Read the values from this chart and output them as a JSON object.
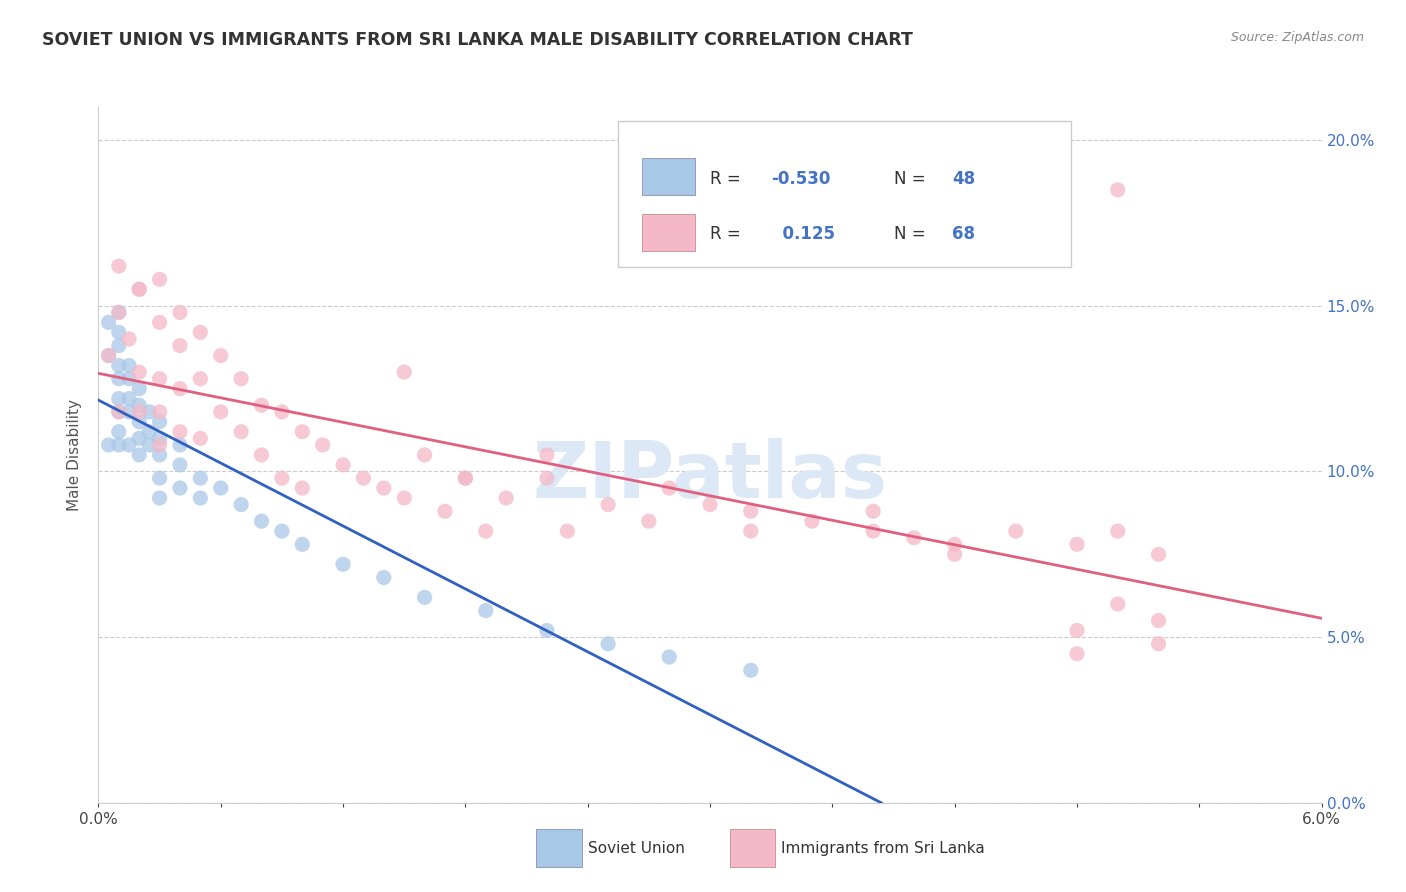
{
  "title": "SOVIET UNION VS IMMIGRANTS FROM SRI LANKA MALE DISABILITY CORRELATION CHART",
  "source": "Source: ZipAtlas.com",
  "ylabel": "Male Disability",
  "x_min": 0.0,
  "x_max": 0.06,
  "y_min": 0.0,
  "y_max": 0.21,
  "right_y_ticks": [
    0.0,
    0.05,
    0.1,
    0.15,
    0.2
  ],
  "right_y_labels": [
    "0.0%",
    "5.0%",
    "10.0%",
    "15.0%",
    "20.0%"
  ],
  "x_ticks": [
    0.0,
    0.006,
    0.012,
    0.018,
    0.024,
    0.03,
    0.036,
    0.042,
    0.048,
    0.054,
    0.06
  ],
  "blue_color": "#a8c8e8",
  "pink_color": "#f4b8c8",
  "blue_line_color": "#3060c0",
  "pink_line_color": "#e06080",
  "watermark_color": "#dce8f5",
  "blue_N": 48,
  "pink_N": 68,
  "blue_R": -0.53,
  "pink_R": 0.125,
  "blue_scatter_x": [
    0.0005,
    0.0005,
    0.0005,
    0.001,
    0.001,
    0.001,
    0.001,
    0.001,
    0.001,
    0.001,
    0.001,
    0.001,
    0.0015,
    0.0015,
    0.0015,
    0.0015,
    0.0015,
    0.002,
    0.002,
    0.002,
    0.002,
    0.002,
    0.0025,
    0.0025,
    0.0025,
    0.003,
    0.003,
    0.003,
    0.003,
    0.003,
    0.004,
    0.004,
    0.004,
    0.005,
    0.005,
    0.006,
    0.007,
    0.008,
    0.009,
    0.01,
    0.012,
    0.014,
    0.016,
    0.019,
    0.022,
    0.025,
    0.028,
    0.032
  ],
  "blue_scatter_y": [
    0.145,
    0.135,
    0.108,
    0.148,
    0.142,
    0.138,
    0.132,
    0.128,
    0.122,
    0.118,
    0.112,
    0.108,
    0.132,
    0.128,
    0.122,
    0.118,
    0.108,
    0.125,
    0.12,
    0.115,
    0.11,
    0.105,
    0.118,
    0.112,
    0.108,
    0.115,
    0.11,
    0.105,
    0.098,
    0.092,
    0.108,
    0.102,
    0.095,
    0.098,
    0.092,
    0.095,
    0.09,
    0.085,
    0.082,
    0.078,
    0.072,
    0.068,
    0.062,
    0.058,
    0.052,
    0.048,
    0.044,
    0.04
  ],
  "pink_scatter_x": [
    0.0005,
    0.001,
    0.001,
    0.0015,
    0.002,
    0.002,
    0.002,
    0.003,
    0.003,
    0.003,
    0.003,
    0.004,
    0.004,
    0.004,
    0.005,
    0.005,
    0.005,
    0.006,
    0.006,
    0.007,
    0.007,
    0.008,
    0.008,
    0.009,
    0.009,
    0.01,
    0.01,
    0.011,
    0.012,
    0.013,
    0.014,
    0.015,
    0.016,
    0.017,
    0.018,
    0.019,
    0.02,
    0.022,
    0.023,
    0.025,
    0.027,
    0.03,
    0.032,
    0.035,
    0.038,
    0.04,
    0.042,
    0.045,
    0.048,
    0.05,
    0.052,
    0.001,
    0.002,
    0.003,
    0.004,
    0.015,
    0.018,
    0.022,
    0.028,
    0.032,
    0.038,
    0.042,
    0.048,
    0.052,
    0.052,
    0.05,
    0.048,
    0.05
  ],
  "pink_scatter_y": [
    0.135,
    0.148,
    0.118,
    0.14,
    0.155,
    0.13,
    0.118,
    0.145,
    0.128,
    0.118,
    0.108,
    0.138,
    0.125,
    0.112,
    0.142,
    0.128,
    0.11,
    0.135,
    0.118,
    0.128,
    0.112,
    0.12,
    0.105,
    0.118,
    0.098,
    0.112,
    0.095,
    0.108,
    0.102,
    0.098,
    0.095,
    0.092,
    0.105,
    0.088,
    0.098,
    0.082,
    0.092,
    0.098,
    0.082,
    0.09,
    0.085,
    0.09,
    0.082,
    0.085,
    0.088,
    0.08,
    0.078,
    0.082,
    0.078,
    0.082,
    0.075,
    0.162,
    0.155,
    0.158,
    0.148,
    0.13,
    0.098,
    0.105,
    0.095,
    0.088,
    0.082,
    0.075,
    0.052,
    0.048,
    0.055,
    0.06,
    0.045,
    0.185
  ]
}
